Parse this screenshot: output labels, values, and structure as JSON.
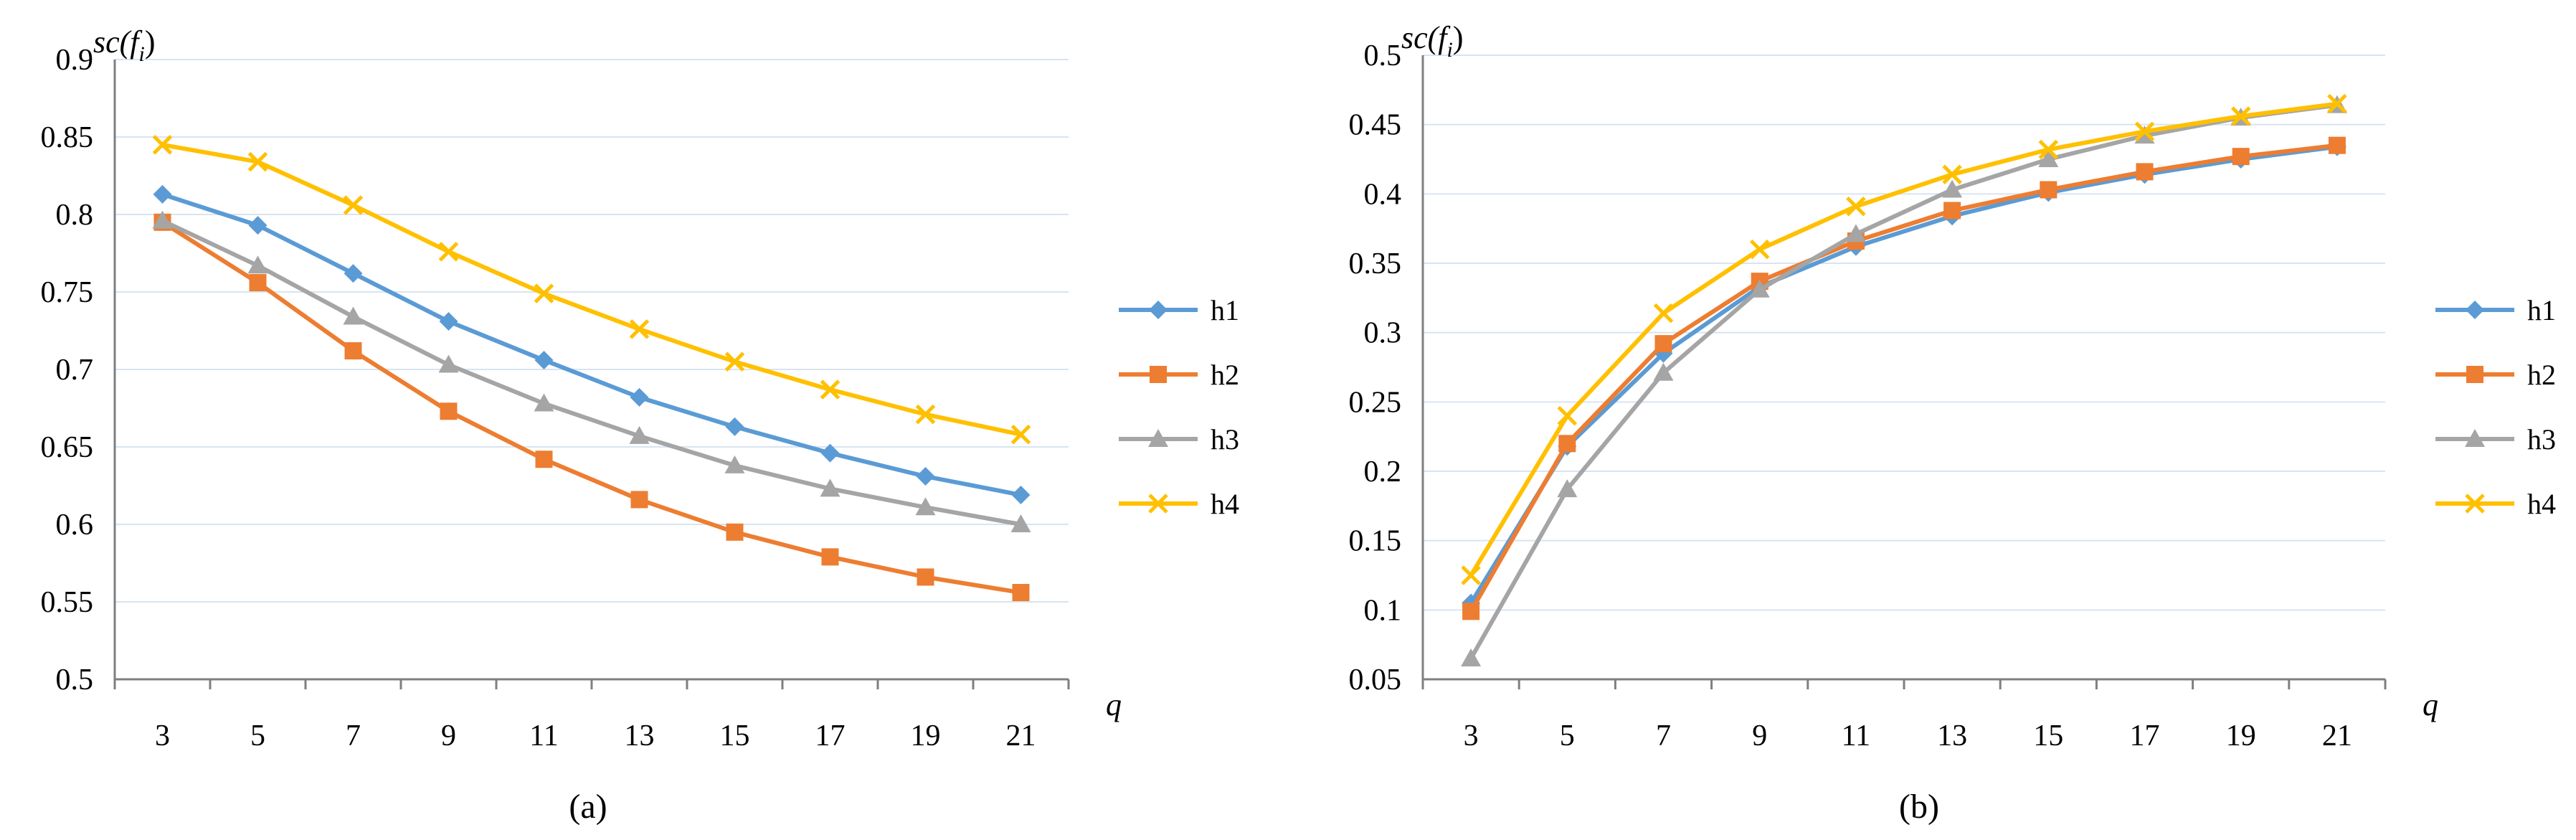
{
  "chart_data": [
    {
      "type": "line",
      "panel": "a",
      "caption": "(a)",
      "ylabel": "sc(fi)",
      "ylabel_main": "sc(f",
      "ylabel_sub": "i",
      "ylabel_close": ")",
      "xlabel": "q",
      "categories": [
        "3",
        "5",
        "7",
        "9",
        "11",
        "13",
        "15",
        "17",
        "19",
        "21"
      ],
      "ylim": [
        0.5,
        0.9
      ],
      "ytick_step": 0.05,
      "yticks": [
        "0.5",
        "0.55",
        "0.6",
        "0.65",
        "0.7",
        "0.75",
        "0.8",
        "0.85",
        "0.9"
      ],
      "grid": true,
      "legend_position": "right",
      "series": [
        {
          "name": "h1",
          "marker": "diamond",
          "color": "#5B9BD5",
          "values": [
            0.813,
            0.793,
            0.762,
            0.731,
            0.706,
            0.682,
            0.663,
            0.646,
            0.631,
            0.619
          ]
        },
        {
          "name": "h2",
          "marker": "square",
          "color": "#ED7D31",
          "values": [
            0.795,
            0.756,
            0.712,
            0.673,
            0.642,
            0.616,
            0.595,
            0.579,
            0.566,
            0.556
          ]
        },
        {
          "name": "h3",
          "marker": "triangle",
          "color": "#A5A5A5",
          "values": [
            0.796,
            0.767,
            0.734,
            0.703,
            0.678,
            0.657,
            0.638,
            0.623,
            0.611,
            0.6
          ]
        },
        {
          "name": "h4",
          "marker": "x",
          "color": "#FFC000",
          "values": [
            0.845,
            0.834,
            0.806,
            0.776,
            0.749,
            0.726,
            0.705,
            0.687,
            0.671,
            0.658
          ]
        }
      ]
    },
    {
      "type": "line",
      "panel": "b",
      "caption": "(b)",
      "ylabel": "sc(fi)",
      "ylabel_main": "sc(f",
      "ylabel_sub": "i",
      "ylabel_close": ")",
      "xlabel": "q",
      "categories": [
        "3",
        "5",
        "7",
        "9",
        "11",
        "13",
        "15",
        "17",
        "19",
        "21"
      ],
      "ylim": [
        0.05,
        0.5
      ],
      "ytick_step": 0.05,
      "yticks": [
        "0.05",
        "0.1",
        "0.15",
        "0.2",
        "0.25",
        "0.3",
        "0.35",
        "0.4",
        "0.45",
        "0.5"
      ],
      "grid": true,
      "legend_position": "right",
      "series": [
        {
          "name": "h1",
          "marker": "diamond",
          "color": "#5B9BD5",
          "values": [
            0.105,
            0.218,
            0.285,
            0.333,
            0.362,
            0.384,
            0.401,
            0.414,
            0.425,
            0.434
          ]
        },
        {
          "name": "h2",
          "marker": "square",
          "color": "#ED7D31",
          "values": [
            0.099,
            0.22,
            0.292,
            0.337,
            0.366,
            0.388,
            0.403,
            0.416,
            0.427,
            0.435
          ]
        },
        {
          "name": "h3",
          "marker": "triangle",
          "color": "#A5A5A5",
          "values": [
            0.065,
            0.187,
            0.271,
            0.331,
            0.371,
            0.403,
            0.425,
            0.442,
            0.455,
            0.464
          ]
        },
        {
          "name": "h4",
          "marker": "x",
          "color": "#FFC000",
          "values": [
            0.125,
            0.24,
            0.314,
            0.36,
            0.391,
            0.414,
            0.432,
            0.445,
            0.456,
            0.465
          ]
        }
      ]
    }
  ]
}
